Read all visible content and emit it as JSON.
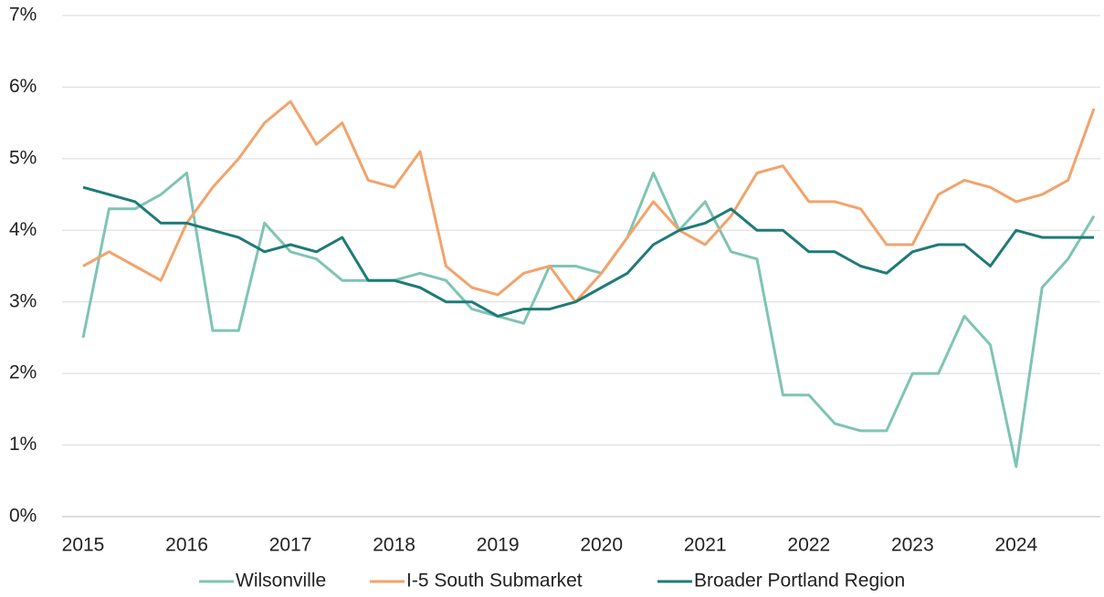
{
  "chart_data": {
    "type": "line",
    "categories": [
      "2015",
      null,
      null,
      null,
      "2016",
      null,
      null,
      null,
      "2017",
      null,
      null,
      null,
      "2018",
      null,
      null,
      null,
      "2019",
      null,
      null,
      null,
      "2020",
      null,
      null,
      null,
      "2021",
      null,
      null,
      null,
      "2022",
      null,
      null,
      null,
      "2023",
      null,
      null,
      null,
      "2024",
      null,
      null,
      null
    ],
    "series": [
      {
        "name": "Wilsonville",
        "color": "#7fc4b4",
        "values": [
          2.5,
          4.3,
          4.3,
          4.5,
          4.8,
          2.6,
          2.6,
          4.1,
          3.7,
          3.6,
          3.3,
          3.3,
          3.3,
          3.4,
          3.3,
          2.9,
          2.8,
          2.7,
          3.5,
          3.5,
          3.4,
          3.9,
          4.8,
          4.0,
          4.4,
          3.7,
          3.6,
          1.7,
          1.7,
          1.3,
          1.2,
          1.2,
          2.0,
          2.0,
          2.8,
          2.4,
          0.7,
          3.2,
          3.6,
          4.2
        ]
      },
      {
        "name": "I-5 South Submarket",
        "color": "#f2a36b",
        "values": [
          3.5,
          3.7,
          3.5,
          3.3,
          4.1,
          4.6,
          5.0,
          5.5,
          5.8,
          5.2,
          5.5,
          4.7,
          4.6,
          5.1,
          3.5,
          3.2,
          3.1,
          3.4,
          3.5,
          3.0,
          3.4,
          3.9,
          4.4,
          4.0,
          3.8,
          4.2,
          4.8,
          4.9,
          4.4,
          4.4,
          4.3,
          3.8,
          3.8,
          4.5,
          4.7,
          4.6,
          4.4,
          4.5,
          4.7,
          5.7
        ]
      },
      {
        "name": "Broader Portland Region",
        "color": "#1e7b77",
        "values": [
          4.6,
          4.5,
          4.4,
          4.1,
          4.1,
          4.0,
          3.9,
          3.7,
          3.8,
          3.7,
          3.9,
          3.3,
          3.3,
          3.2,
          3.0,
          3.0,
          2.8,
          2.9,
          2.9,
          3.0,
          3.2,
          3.4,
          3.8,
          4.0,
          4.1,
          4.3,
          4.0,
          4.0,
          3.7,
          3.7,
          3.5,
          3.4,
          3.7,
          3.8,
          3.8,
          3.5,
          4.0,
          3.9,
          3.9,
          3.9
        ]
      }
    ],
    "ylim": [
      0,
      7
    ],
    "yticks": [
      {
        "value": 0,
        "label": "0%"
      },
      {
        "value": 1,
        "label": "1%"
      },
      {
        "value": 2,
        "label": "2%"
      },
      {
        "value": 3,
        "label": "3%"
      },
      {
        "value": 4,
        "label": "4%"
      },
      {
        "value": 5,
        "label": "5%"
      },
      {
        "value": 6,
        "label": "6%"
      },
      {
        "value": 7,
        "label": "7%"
      }
    ],
    "grid": true,
    "legend": "bottom"
  }
}
